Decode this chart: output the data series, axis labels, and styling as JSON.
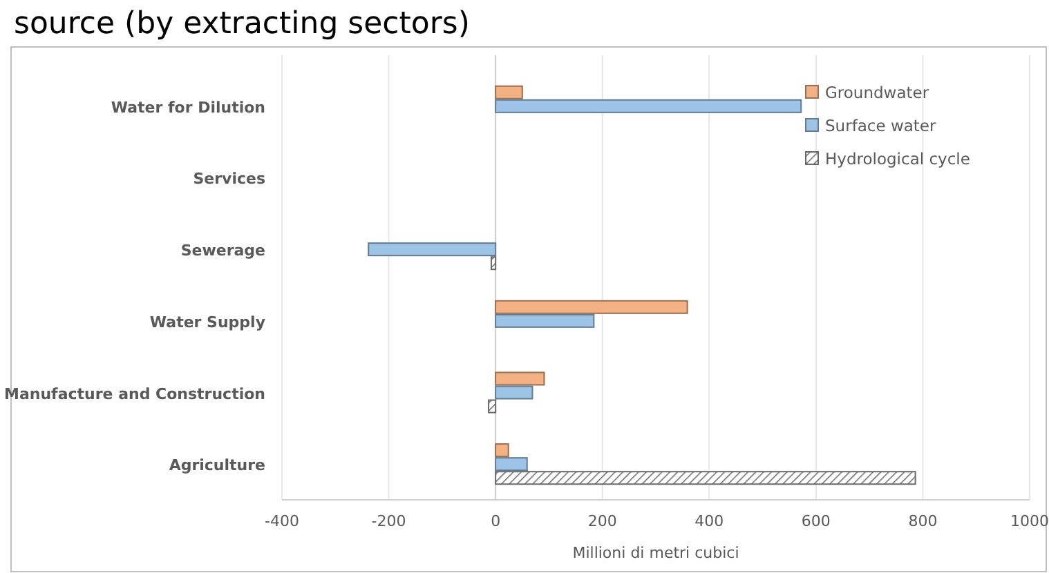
{
  "chart_data": {
    "type": "bar",
    "orientation": "horizontal",
    "title": "source (by extracting sectors)",
    "xlabel": "Millioni di metri cubici",
    "categories": [
      "Water for Dilution",
      "Services",
      "Sewerage",
      "Water Supply",
      "Manufacture and Construction",
      "Agriculture"
    ],
    "series": [
      {
        "name": "Groundwater",
        "color": "#f4b183",
        "values": [
          50,
          null,
          null,
          359,
          91,
          24
        ]
      },
      {
        "name": "Surface water",
        "color": "#9dc3e6",
        "values": [
          572,
          null,
          -238,
          184,
          69,
          59
        ]
      },
      {
        "name": "Hydrological cycle",
        "color": "#686868",
        "values": [
          null,
          null,
          -8,
          null,
          -13,
          786
        ]
      }
    ],
    "xlim": [
      -400,
      1000
    ],
    "xticks": [
      -400,
      -200,
      0,
      200,
      400,
      600,
      800,
      1000
    ],
    "grid": "x",
    "legend": "top right"
  }
}
